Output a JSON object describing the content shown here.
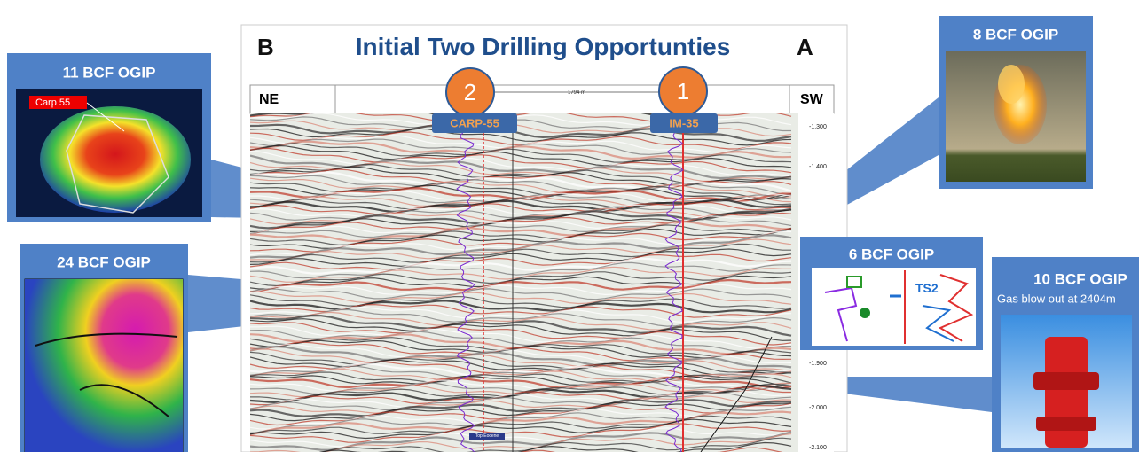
{
  "slide": {
    "title": "Initial Two Drilling Opportunties",
    "left_letter": "B",
    "right_letter": "A"
  },
  "section": {
    "left_dir": "NE",
    "right_dir": "SW",
    "distance": "1794 m",
    "depth_labels": [
      "-1.300",
      "-1.400",
      "-1.900",
      "-2.000",
      "-2.100"
    ],
    "marker": "Top Eocene"
  },
  "wells": [
    {
      "number": "2",
      "name": "CARP-55"
    },
    {
      "number": "1",
      "name": "IM-35"
    }
  ],
  "callouts": [
    {
      "title": "11 BCF OGIP",
      "tag": "Carp 55"
    },
    {
      "title": "24 BCF OGIP"
    },
    {
      "title": "8 BCF OGIP"
    },
    {
      "title": "6 BCF OGIP",
      "tag": "TS2"
    },
    {
      "title": "10 BCF OGIP",
      "subtitle": "Gas blow out at 2404m"
    }
  ]
}
